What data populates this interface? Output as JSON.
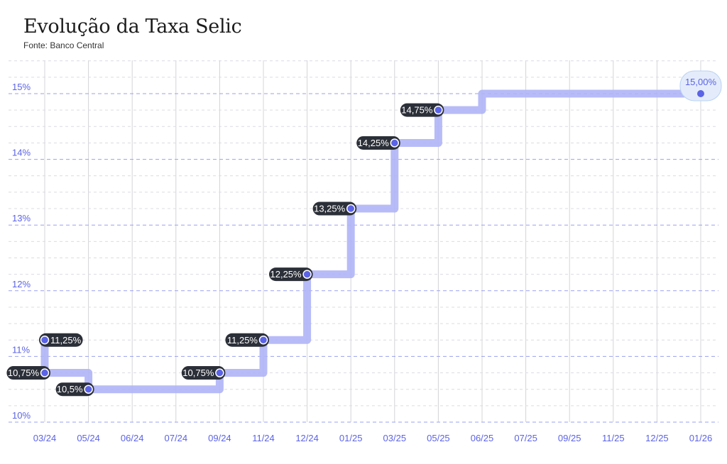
{
  "title": "Evolução da Taxa Selic",
  "subtitle": "Fonte: Banco Central",
  "colors": {
    "line": "#afb4f6",
    "point": "#5b63e6",
    "label_bg": "#2b2f38",
    "axis_text": "#5b63e6",
    "last_label_bg": "#e4ecfb"
  },
  "chart_data": {
    "type": "line",
    "step": true,
    "title": "Evolução da Taxa Selic",
    "subtitle": "Fonte: Banco Central",
    "xlabel": "",
    "ylabel": "",
    "ylim": [
      10,
      15.5
    ],
    "grid": true,
    "x_ticks": [
      "03/24",
      "05/24",
      "06/24",
      "07/24",
      "09/24",
      "11/24",
      "12/24",
      "01/25",
      "03/25",
      "05/25",
      "06/25",
      "07/25",
      "09/25",
      "11/25",
      "12/25",
      "01/26"
    ],
    "y_ticks": [
      10,
      11,
      12,
      13,
      14,
      15
    ],
    "y_tick_labels": [
      "10%",
      "11%",
      "12%",
      "13%",
      "14%",
      "15%"
    ],
    "series": [
      {
        "points": [
          {
            "x": "03/24",
            "y": 11.25,
            "label": "11,25%"
          },
          {
            "x": "03/24",
            "y": 10.75,
            "label": "10,75%"
          },
          {
            "x": "05/24",
            "y": 10.5,
            "label": "10,5%"
          },
          {
            "x": "09/24",
            "y": 10.75,
            "label": "10,75%"
          },
          {
            "x": "11/24",
            "y": 11.25,
            "label": "11,25%"
          },
          {
            "x": "12/24",
            "y": 12.25,
            "label": "12,25%"
          },
          {
            "x": "01/25",
            "y": 13.25,
            "label": "13,25%"
          },
          {
            "x": "03/25",
            "y": 14.25,
            "label": "14,25%"
          },
          {
            "x": "05/25",
            "y": 14.75,
            "label": "14,75%"
          },
          {
            "x": "06/25",
            "y": 15.0,
            "label": ""
          },
          {
            "x": "01/26",
            "y": 15.0,
            "label": "15,00%"
          }
        ]
      }
    ]
  }
}
